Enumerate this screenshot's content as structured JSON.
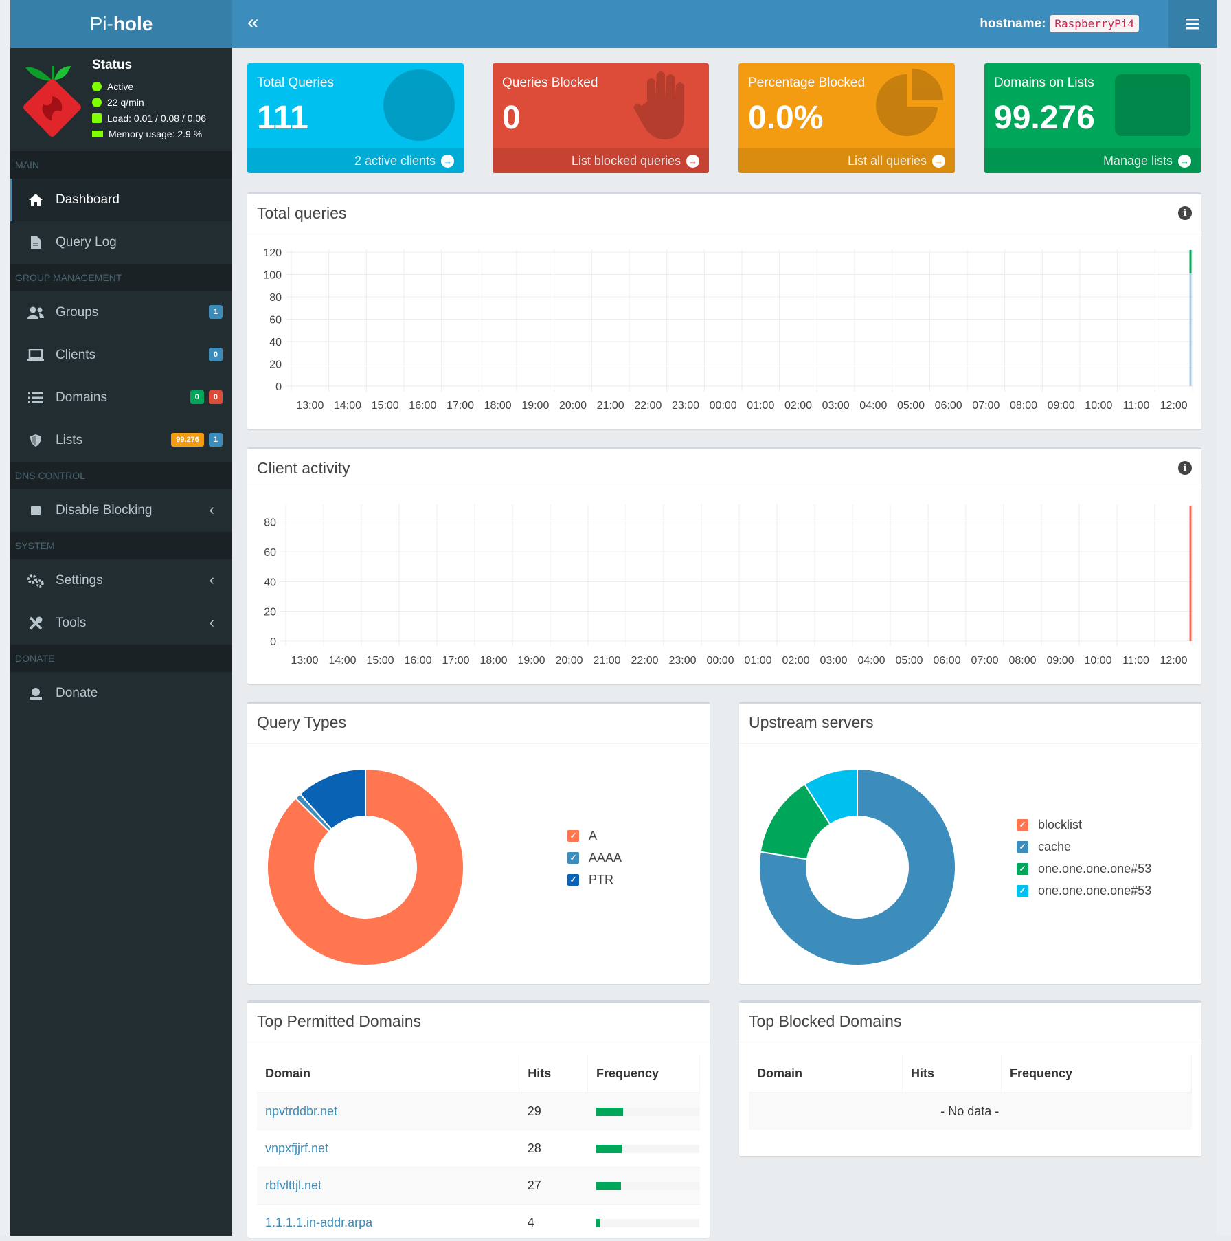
{
  "header": {
    "logo_prefix": "Pi-",
    "logo_suffix": "hole",
    "collapse_icon": "«",
    "hostname_label": "hostname:",
    "hostname_value": "RaspberryPi4"
  },
  "sidebar": {
    "status": {
      "title": "Status",
      "active": "Active",
      "qpm": "22 q/min",
      "load": "Load: 0.01 / 0.08 / 0.06",
      "memory": "Memory usage: 2.9 %"
    },
    "sections": {
      "main": "MAIN",
      "group": "GROUP MANAGEMENT",
      "dns": "DNS CONTROL",
      "system": "SYSTEM",
      "donate": "DONATE"
    },
    "items": {
      "dashboard": "Dashboard",
      "querylog": "Query Log",
      "groups": "Groups",
      "groups_badge": "1",
      "clients": "Clients",
      "clients_badge": "0",
      "domains": "Domains",
      "domains_badge_allow": "0",
      "domains_badge_deny": "0",
      "lists": "Lists",
      "lists_badge_domains": "99.276",
      "lists_badge_count": "1",
      "disable": "Disable Blocking",
      "settings": "Settings",
      "tools": "Tools",
      "donate": "Donate"
    }
  },
  "stats": {
    "total": {
      "title": "Total Queries",
      "value": "111",
      "footer": "2 active clients",
      "color": "#00c0ef"
    },
    "blocked": {
      "title": "Queries Blocked",
      "value": "0",
      "footer": "List blocked queries",
      "color": "#dd4b39"
    },
    "percent": {
      "title": "Percentage Blocked",
      "value": "0.0%",
      "footer": "List all queries",
      "color": "#f39c12"
    },
    "domains": {
      "title": "Domains on Lists",
      "value": "99.276",
      "footer": "Manage lists",
      "color": "#00a65a"
    }
  },
  "panels": {
    "total_queries": "Total queries",
    "client_activity": "Client activity",
    "query_types": "Query Types",
    "upstream": "Upstream servers",
    "top_permitted": "Top Permitted Domains",
    "top_blocked": "Top Blocked Domains"
  },
  "chart_data": [
    {
      "type": "area",
      "title": "Total queries",
      "x": [
        "13:00",
        "14:00",
        "15:00",
        "16:00",
        "17:00",
        "18:00",
        "19:00",
        "20:00",
        "21:00",
        "22:00",
        "23:00",
        "00:00",
        "01:00",
        "02:00",
        "03:00",
        "04:00",
        "05:00",
        "06:00",
        "07:00",
        "08:00",
        "09:00",
        "10:00",
        "11:00",
        "12:00"
      ],
      "series": [
        {
          "values": [
            0,
            0,
            0,
            0,
            0,
            0,
            0,
            0,
            0,
            0,
            0,
            0,
            0,
            0,
            0,
            0,
            0,
            0,
            0,
            0,
            0,
            0,
            0,
            0
          ],
          "color": "#3c8dbc"
        },
        {
          "values": [
            0,
            0,
            0,
            0,
            0,
            0,
            0,
            0,
            0,
            0,
            0,
            0,
            0,
            0,
            0,
            0,
            0,
            0,
            0,
            0,
            0,
            0,
            0,
            0
          ],
          "color": "#00a65a"
        }
      ],
      "final_spike": {
        "total": 101,
        "blocked": 0
      },
      "ylim": [
        0,
        120
      ],
      "yticks": [
        0,
        20,
        40,
        60,
        80,
        100,
        120
      ]
    },
    {
      "type": "area",
      "title": "Client activity",
      "x": [
        "13:00",
        "14:00",
        "15:00",
        "16:00",
        "17:00",
        "18:00",
        "19:00",
        "20:00",
        "21:00",
        "22:00",
        "23:00",
        "00:00",
        "01:00",
        "02:00",
        "03:00",
        "04:00",
        "05:00",
        "06:00",
        "07:00",
        "08:00",
        "09:00",
        "10:00",
        "11:00",
        "12:00"
      ],
      "final_spike": 91,
      "spike_color": "#f56954",
      "ylim": [
        0,
        90
      ],
      "yticks": [
        0,
        20,
        40,
        60,
        80
      ]
    },
    {
      "type": "pie",
      "title": "Query Types",
      "labels": [
        "A",
        "AAAA",
        "PTR"
      ],
      "values": [
        87.4,
        1.0,
        11.6
      ],
      "colors": [
        "#ff7650",
        "#3c8dbc",
        "#0a62b4"
      ]
    },
    {
      "type": "pie",
      "title": "Upstream servers",
      "labels": [
        "blocklist",
        "cache",
        "one.one.one.one#53",
        "one.one.one.one#53"
      ],
      "values": [
        0,
        77.5,
        13.5,
        9.0
      ],
      "colors": [
        "#ff7650",
        "#3c8dbc",
        "#00a65a",
        "#00c0ef"
      ]
    }
  ],
  "top_permitted": {
    "headers": {
      "domain": "Domain",
      "hits": "Hits",
      "frequency": "Frequency"
    },
    "rows": [
      {
        "domain": "npvtrddbr.net",
        "hits": "29",
        "freq": 26.1
      },
      {
        "domain": "vnpxfjjrf.net",
        "hits": "28",
        "freq": 25.2
      },
      {
        "domain": "rbfvlttjl.net",
        "hits": "27",
        "freq": 24.3
      },
      {
        "domain": "1.1.1.1.in-addr.arpa",
        "hits": "4",
        "freq": 3.6
      }
    ]
  },
  "top_blocked": {
    "headers": {
      "domain": "Domain",
      "hits": "Hits",
      "frequency": "Frequency"
    },
    "empty": "- No data -"
  }
}
